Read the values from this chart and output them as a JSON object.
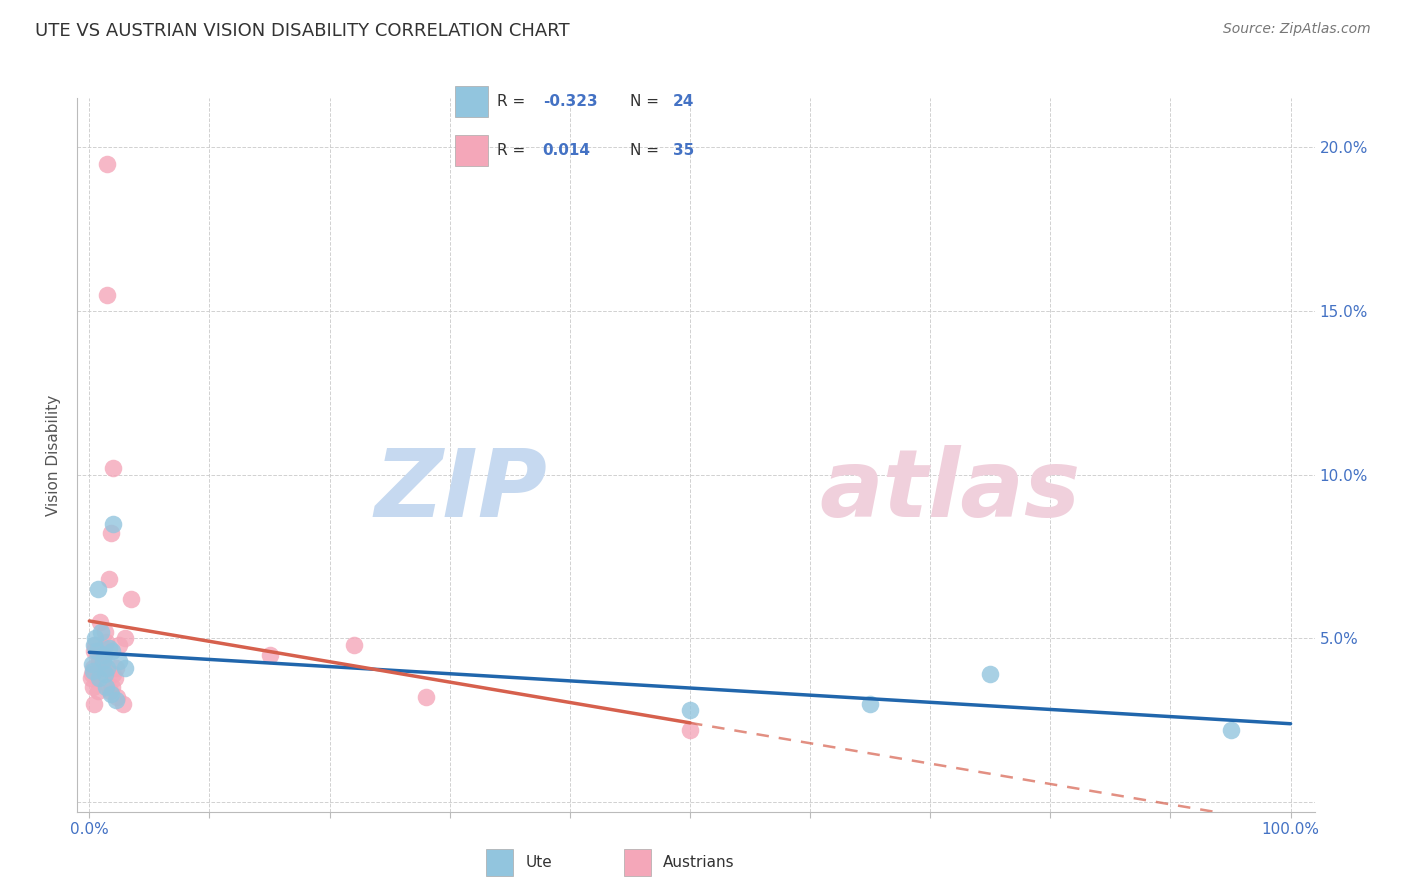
{
  "title": "UTE VS AUSTRIAN VISION DISABILITY CORRELATION CHART",
  "source": "Source: ZipAtlas.com",
  "ylabel": "Vision Disability",
  "xlim": [
    -1,
    102
  ],
  "ylim": [
    -0.3,
    21.5
  ],
  "yticks": [
    0,
    5,
    10,
    15,
    20
  ],
  "xticks": [
    0,
    10,
    20,
    30,
    40,
    50,
    60,
    70,
    80,
    90,
    100
  ],
  "blue_color": "#92c5de",
  "pink_color": "#f4a7b9",
  "blue_line_color": "#2166ac",
  "pink_line_color": "#d6604d",
  "grid_color": "#cccccc",
  "title_color": "#333333",
  "axis_label_color": "#4472c4",
  "legend_R_color": "#4472c4",
  "ute_R": -0.323,
  "ute_N": 24,
  "austrians_R": 0.014,
  "austrians_N": 35,
  "ute_x": [
    0.2,
    0.4,
    0.5,
    0.6,
    0.8,
    1.0,
    1.1,
    1.2,
    1.3,
    1.4,
    1.5,
    1.6,
    1.8,
    1.9,
    2.0,
    2.2,
    2.5,
    3.0,
    0.3,
    0.7,
    50.0,
    65.0,
    75.0,
    95.0
  ],
  "ute_y": [
    4.2,
    4.8,
    5.0,
    4.6,
    3.8,
    5.2,
    4.3,
    4.5,
    3.9,
    3.5,
    4.1,
    4.7,
    3.3,
    4.6,
    8.5,
    3.1,
    4.3,
    4.1,
    4.0,
    6.5,
    2.8,
    3.0,
    3.9,
    2.2
  ],
  "aus_x": [
    0.2,
    0.3,
    0.3,
    0.4,
    0.4,
    0.5,
    0.6,
    0.7,
    0.8,
    0.9,
    1.0,
    1.1,
    1.2,
    1.3,
    1.4,
    1.5,
    1.6,
    1.7,
    1.8,
    1.9,
    2.0,
    2.1,
    2.2,
    2.3,
    2.5,
    2.8,
    3.0,
    3.5,
    0.1,
    15.0,
    22.0,
    28.0,
    50.0,
    1.5,
    2.0
  ],
  "aus_y": [
    3.9,
    3.5,
    4.1,
    3.0,
    4.6,
    4.8,
    3.8,
    3.4,
    4.3,
    5.5,
    4.1,
    4.2,
    4.7,
    5.2,
    4.9,
    19.5,
    6.8,
    3.4,
    8.2,
    3.5,
    10.2,
    3.8,
    4.1,
    3.2,
    4.8,
    3.0,
    5.0,
    6.2,
    3.8,
    4.5,
    4.8,
    3.2,
    2.2,
    15.5,
    3.9
  ],
  "watermark_zip_color": "#c6d9f0",
  "watermark_atlas_color": "#f0d0dc",
  "zip_x": 0.38,
  "zip_y": 0.45,
  "atlas_x": 0.6,
  "atlas_y": 0.45
}
